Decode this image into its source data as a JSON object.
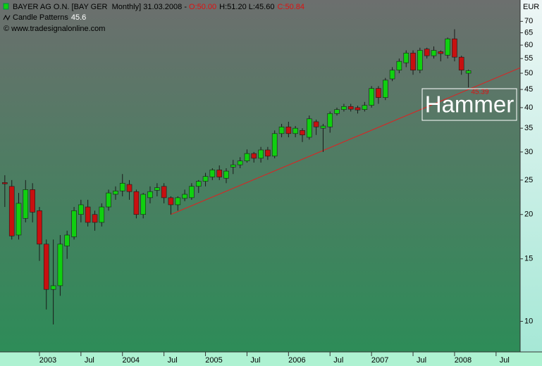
{
  "chart_data": {
    "type": "candlestick",
    "title": "BAYER AG O.N. [BAY GER  Monthly] 31.03.2008 -",
    "last_open": "O:50.00",
    "last_high_low": "H:51.20 L:45.60",
    "last_close": "C:50.84",
    "indicator_name": "Candle Patterns",
    "indicator_value": 45.6,
    "copyright": "© www.tradesignalonline.com",
    "y_axis_label": "EUR",
    "log_scale": true,
    "grid": false,
    "up_color": "#10d010",
    "down_color": "#c81010",
    "x": [
      2002.583,
      2002.667,
      2002.75,
      2002.833,
      2002.917,
      2003.0,
      2003.083,
      2003.167,
      2003.25,
      2003.333,
      2003.417,
      2003.5,
      2003.583,
      2003.667,
      2003.75,
      2003.833,
      2003.917,
      2004.0,
      2004.083,
      2004.167,
      2004.25,
      2004.333,
      2004.417,
      2004.5,
      2004.583,
      2004.667,
      2004.75,
      2004.833,
      2004.917,
      2005.0,
      2005.083,
      2005.167,
      2005.25,
      2005.333,
      2005.417,
      2005.5,
      2005.583,
      2005.667,
      2005.75,
      2005.833,
      2005.917,
      2006.0,
      2006.083,
      2006.167,
      2006.25,
      2006.333,
      2006.417,
      2006.5,
      2006.583,
      2006.667,
      2006.75,
      2006.833,
      2006.917,
      2007.0,
      2007.083,
      2007.167,
      2007.25,
      2007.333,
      2007.417,
      2007.5,
      2007.583,
      2007.667,
      2007.75,
      2007.833,
      2007.917,
      2008.0,
      2008.083,
      2008.167
    ],
    "open": [
      24.6,
      24,
      17.5,
      19.5,
      23.5,
      20.5,
      16.5,
      12.3,
      12.6,
      16.3,
      17.3,
      20,
      21,
      20,
      19,
      21,
      22.8,
      23.3,
      24.3,
      23.2,
      20,
      22.3,
      23.4,
      24,
      22.3,
      21.3,
      22.2,
      22.3,
      24,
      24.8,
      25.5,
      26.7,
      25.3,
      27.2,
      27.6,
      28.3,
      29.7,
      28.8,
      30.4,
      29.2,
      33.8,
      35.3,
      33.8,
      34.5,
      33,
      36.5,
      35,
      35.3,
      38.5,
      39.5,
      40.3,
      40,
      39.5,
      40.6,
      45.3,
      42.7,
      48.2,
      51,
      53.5,
      57,
      51,
      58.5,
      56,
      57.5,
      56.2,
      62.5,
      55.5,
      50.0
    ],
    "high": [
      25.8,
      25,
      23,
      25,
      24.5,
      21,
      17,
      17,
      17.5,
      18,
      21,
      22,
      22,
      20.5,
      21.5,
      23.5,
      24,
      26,
      25,
      23.5,
      23,
      24,
      24.5,
      24.5,
      22.5,
      22.5,
      23.5,
      24.5,
      25,
      26.2,
      27,
      27.5,
      27,
      28.5,
      29,
      30.5,
      30,
      31,
      31,
      34.5,
      36,
      36.5,
      35.5,
      35,
      38,
      37,
      36,
      39,
      40,
      41,
      41,
      40.5,
      41.5,
      46,
      46,
      48.5,
      52,
      55,
      58,
      58,
      59,
      59,
      59.5,
      58,
      63,
      66.5,
      56,
      51.2
    ],
    "low": [
      21,
      17,
      17,
      19,
      19,
      14.8,
      10.8,
      9.8,
      11.8,
      15,
      17,
      19,
      18.5,
      18,
      18.5,
      20.5,
      22,
      22.5,
      22,
      19.5,
      19.5,
      21.5,
      22.5,
      21.5,
      20,
      20.5,
      21.8,
      22,
      23,
      24,
      25,
      25,
      24.5,
      26,
      27,
      28,
      28,
      28,
      28.5,
      28.8,
      33,
      33,
      33,
      32,
      32.5,
      33.5,
      30,
      34,
      38,
      39,
      39,
      38.5,
      39,
      40,
      41,
      42,
      47.5,
      50,
      52,
      49.5,
      50,
      55,
      55,
      54,
      55,
      54,
      49.5,
      45.6
    ],
    "close": [
      24.4,
      17.4,
      21.5,
      23.5,
      20.3,
      16.5,
      12.3,
      12.6,
      16.5,
      17.5,
      20.5,
      21.3,
      19,
      19,
      21,
      23,
      23.3,
      24.5,
      23.2,
      20,
      22.8,
      23.2,
      23.8,
      22.3,
      21.3,
      22.3,
      22.8,
      24,
      24.8,
      25.6,
      26.7,
      25.5,
      26.5,
      27.6,
      28.3,
      29.7,
      28.8,
      30.4,
      29.2,
      33.8,
      35.3,
      33.8,
      35,
      33.5,
      37.2,
      35.3,
      35.5,
      38.5,
      39.5,
      40.3,
      39.6,
      39.4,
      40.6,
      45.3,
      42.7,
      47.8,
      51,
      54,
      57,
      51,
      58,
      56,
      58,
      56.8,
      62.5,
      55.5,
      51,
      50.84
    ],
    "xlim": [
      2002.525,
      2008.79
    ],
    "ylim": [
      8.2,
      80.4
    ],
    "yticks": [
      10,
      15,
      20,
      25,
      30,
      35,
      40,
      45,
      50,
      55,
      60,
      65,
      70
    ],
    "xticks": [
      2003,
      {
        "value": 2003.5,
        "label": "Jul"
      },
      2004,
      {
        "value": 2004.5,
        "label": "Jul"
      },
      2005,
      {
        "value": 2005.5,
        "label": "Jul"
      },
      2006,
      {
        "value": 2006.5,
        "label": "Jul"
      },
      2007,
      {
        "value": 2007.5,
        "label": "Jul"
      },
      2008,
      {
        "value": 2008.5,
        "label": "Jul"
      }
    ],
    "trendline": {
      "x": [
        2004.583,
        2008.79
      ],
      "values": [
        20,
        51.8
      ],
      "color": "#e02020"
    },
    "pattern_label": "Hammer",
    "pattern_value": 45.39
  }
}
